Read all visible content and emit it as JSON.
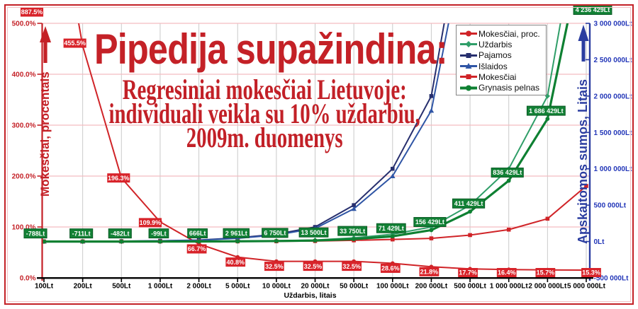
{
  "header": {
    "title": "Pipedija supažindina:",
    "subtitle_lines": [
      "Regresiniai mokesčiai Lietuvoje:",
      "individuali veikla su 10% uždarbiu,",
      "2009m. duomenys"
    ]
  },
  "chart_data": {
    "type": "line",
    "title": "Pipedija supažindina:",
    "subtitle": "Regresiniai mokesčiai Lietuvoje: individuali veikla su 10% uždarbiu, 2009m. duomenys",
    "categories": [
      "100Lt",
      "200Lt",
      "500Lt",
      "1 000Lt",
      "2 000Lt",
      "5 000Lt",
      "10 000Lt",
      "20 000Lt",
      "50 000Lt",
      "100 000Lt",
      "200 000Lt",
      "500 000Lt",
      "1 000 000Lt",
      "2 000 000Lt",
      "5 000 000Lt"
    ],
    "xlabel": "Uždarbis, litais",
    "grid": true,
    "legend_position": "top-right",
    "left_axis": {
      "label": "Mokesčiai, procentais",
      "min": 0,
      "max": 500,
      "ticks": [
        "0.0%",
        "100.0%",
        "200.0%",
        "300.0%",
        "400.0%",
        "500.0%"
      ],
      "color": "#c42127"
    },
    "right_axis": {
      "label": "Apskaitomos sumos, Litais",
      "min": -500000,
      "max": 3000000,
      "ticks": [
        "-500 000Lt",
        "0Lt",
        "500 000Lt",
        "1 000 000Lt",
        "1 500 000Lt",
        "2 000 000Lt",
        "2 500 000Lt",
        "3 000 000Lt"
      ],
      "color": "#2b3da0",
      "text_color": "#2236b8"
    },
    "series": [
      {
        "name": "Mokesčiai, proc.",
        "axis": "left",
        "color": "#d02428",
        "marker": "circle",
        "line_width": 2,
        "values": [
          887.5,
          455.5,
          196.3,
          109.9,
          66.7,
          40.8,
          32.5,
          32.5,
          32.5,
          28.6,
          21.8,
          17.7,
          16.4,
          15.7,
          15.3
        ],
        "labels": [
          "887.5%",
          "455.5%",
          "196.3%",
          "109.9%",
          "66.7%",
          "40.8%",
          "32.5%",
          "32.5%",
          "32.5%",
          "28.6%",
          "21.8%",
          "17.7%",
          "16.4%",
          "15.7%",
          "15.3%"
        ],
        "label_sides": [
          "pin-top",
          "above-left",
          "on",
          "left",
          "below",
          "below",
          "below",
          "below",
          "below",
          "below",
          "below",
          "below",
          "below",
          "below",
          "below"
        ],
        "label_style": "red"
      },
      {
        "name": "Uždarbis",
        "axis": "right",
        "color": "#2f9e68",
        "marker": "diamond",
        "line_width": 2,
        "values": [
          100,
          200,
          500,
          1000,
          2000,
          5000,
          10000,
          20000,
          50000,
          100000,
          200000,
          500000,
          1000000,
          2000000,
          5000000
        ]
      },
      {
        "name": "Pajamos",
        "axis": "right",
        "color": "#272f6e",
        "marker": "square",
        "line_width": 2,
        "values": [
          1000,
          2000,
          5000,
          10000,
          20000,
          50000,
          100000,
          200000,
          500000,
          1000000,
          2000000,
          5000000,
          10000000,
          20000000,
          50000000
        ]
      },
      {
        "name": "Išlaidos",
        "axis": "right",
        "color": "#2f55a5",
        "marker": "triangle",
        "line_width": 2,
        "values": [
          900,
          1800,
          4500,
          9000,
          18000,
          45000,
          90000,
          180000,
          450000,
          900000,
          1800000,
          4500000,
          9000000,
          18000000,
          45000000
        ]
      },
      {
        "name": "Mokesčiai",
        "axis": "right",
        "color": "#d02428",
        "marker": "square",
        "line_width": 2,
        "values": [
          888,
          911,
          982,
          1099,
          1334,
          2040,
          3250,
          6500,
          16250,
          28571,
          43571,
          88571,
          163571,
          313571,
          763571
        ]
      },
      {
        "name": "Grynasis pelnas",
        "axis": "right",
        "color": "#0e8032",
        "marker": "circle",
        "line_width": 3.2,
        "values": [
          -788,
          -711,
          -482,
          -99,
          666,
          2961,
          6750,
          13500,
          33750,
          71429,
          156429,
          411429,
          836429,
          1686429,
          4236429
        ],
        "labels": [
          "-788Lt",
          "-711Lt",
          "-482Lt",
          "-99Lt",
          "666Lt",
          "2 961Lt",
          "6 750Lt",
          "13 500Lt",
          "33 750Lt",
          "71 429Lt",
          "156 429Lt",
          "411 429Lt",
          "836 429Lt",
          "1 686 429Lt",
          "4 236 429Lt"
        ],
        "label_sides": [
          "above",
          "above",
          "above",
          "above",
          "above",
          "above",
          "above",
          "above",
          "above",
          "above",
          "above",
          "above",
          "above",
          "above",
          "pin-top"
        ],
        "label_style": "green"
      }
    ],
    "colors": {
      "grid_vertical": "#cacaca",
      "grid_horizontal": "#f4bcc0",
      "x_axis": "#000000",
      "red_label_bg": "#d8232a",
      "green_label_bg": "#128135",
      "green_label_border": "#0a5a24"
    }
  }
}
